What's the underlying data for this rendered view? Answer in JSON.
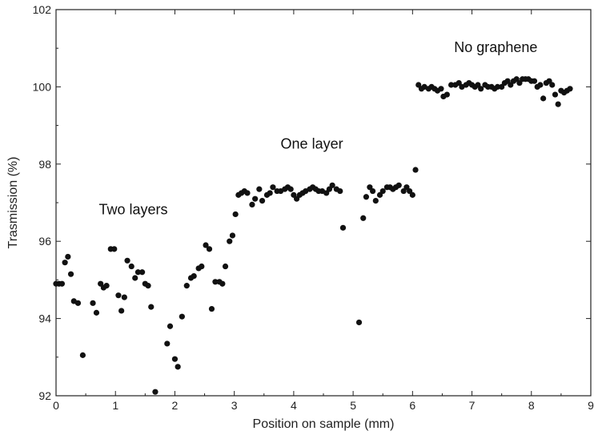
{
  "chart_data": {
    "type": "scatter",
    "xlabel": "Position on sample (mm)",
    "ylabel": "Trasmission (%)",
    "xlim": [
      0,
      9
    ],
    "ylim": [
      92,
      102
    ],
    "x_ticks": [
      "0",
      "1",
      "2",
      "3",
      "4",
      "5",
      "6",
      "7",
      "8",
      "9"
    ],
    "y_ticks": [
      "92",
      "94",
      "96",
      "98",
      "100",
      "102"
    ],
    "grid": false,
    "annotations": [
      {
        "text": "Two layers",
        "x": 0.72,
        "y": 96.7
      },
      {
        "text": "One layer",
        "x": 3.78,
        "y": 98.4
      },
      {
        "text": "No graphene",
        "x": 6.7,
        "y": 100.9
      }
    ],
    "marker_color": "#111111",
    "series": [
      {
        "points": [
          [
            0.0,
            94.9
          ],
          [
            0.05,
            94.9
          ],
          [
            0.1,
            94.9
          ],
          [
            0.15,
            95.45
          ],
          [
            0.2,
            95.6
          ],
          [
            0.25,
            95.15
          ],
          [
            0.3,
            94.45
          ],
          [
            0.37,
            94.4
          ],
          [
            0.45,
            93.05
          ],
          [
            0.62,
            94.4
          ],
          [
            0.68,
            94.15
          ],
          [
            0.75,
            94.9
          ],
          [
            0.8,
            94.8
          ],
          [
            0.85,
            94.85
          ],
          [
            0.92,
            95.8
          ],
          [
            0.98,
            95.8
          ],
          [
            1.05,
            94.6
          ],
          [
            1.1,
            94.2
          ],
          [
            1.15,
            94.55
          ],
          [
            1.2,
            95.5
          ],
          [
            1.27,
            95.35
          ],
          [
            1.33,
            95.05
          ],
          [
            1.38,
            95.2
          ],
          [
            1.45,
            95.2
          ],
          [
            1.5,
            94.9
          ],
          [
            1.55,
            94.85
          ],
          [
            1.6,
            94.3
          ],
          [
            1.67,
            92.1
          ],
          [
            1.87,
            93.35
          ],
          [
            1.92,
            93.8
          ],
          [
            2.0,
            92.95
          ],
          [
            2.05,
            92.75
          ],
          [
            2.12,
            94.05
          ],
          [
            2.2,
            94.85
          ],
          [
            2.27,
            95.05
          ],
          [
            2.32,
            95.1
          ],
          [
            2.4,
            95.3
          ],
          [
            2.45,
            95.35
          ],
          [
            2.52,
            95.9
          ],
          [
            2.58,
            95.8
          ],
          [
            2.62,
            94.25
          ],
          [
            2.68,
            94.95
          ],
          [
            2.75,
            94.95
          ],
          [
            2.8,
            94.9
          ],
          [
            2.85,
            95.35
          ],
          [
            2.92,
            96.0
          ],
          [
            2.97,
            96.15
          ],
          [
            3.02,
            96.7
          ],
          [
            3.07,
            97.2
          ],
          [
            3.12,
            97.25
          ],
          [
            3.17,
            97.3
          ],
          [
            3.22,
            97.25
          ],
          [
            3.3,
            96.95
          ],
          [
            3.35,
            97.1
          ],
          [
            3.42,
            97.35
          ],
          [
            3.47,
            97.05
          ],
          [
            3.55,
            97.2
          ],
          [
            3.6,
            97.25
          ],
          [
            3.65,
            97.4
          ],
          [
            3.72,
            97.3
          ],
          [
            3.78,
            97.3
          ],
          [
            3.85,
            97.35
          ],
          [
            3.9,
            97.4
          ],
          [
            3.95,
            97.35
          ],
          [
            4.0,
            97.2
          ],
          [
            4.05,
            97.1
          ],
          [
            4.1,
            97.2
          ],
          [
            4.15,
            97.25
          ],
          [
            4.2,
            97.3
          ],
          [
            4.27,
            97.35
          ],
          [
            4.32,
            97.4
          ],
          [
            4.37,
            97.35
          ],
          [
            4.42,
            97.3
          ],
          [
            4.48,
            97.3
          ],
          [
            4.55,
            97.25
          ],
          [
            4.6,
            97.35
          ],
          [
            4.65,
            97.45
          ],
          [
            4.72,
            97.35
          ],
          [
            4.78,
            97.3
          ],
          [
            4.83,
            96.35
          ],
          [
            5.1,
            93.9
          ],
          [
            5.17,
            96.6
          ],
          [
            5.22,
            97.15
          ],
          [
            5.28,
            97.4
          ],
          [
            5.33,
            97.3
          ],
          [
            5.38,
            97.05
          ],
          [
            5.45,
            97.2
          ],
          [
            5.5,
            97.3
          ],
          [
            5.57,
            97.4
          ],
          [
            5.62,
            97.4
          ],
          [
            5.67,
            97.35
          ],
          [
            5.72,
            97.4
          ],
          [
            5.77,
            97.45
          ],
          [
            5.85,
            97.3
          ],
          [
            5.9,
            97.4
          ],
          [
            5.95,
            97.3
          ],
          [
            6.0,
            97.2
          ],
          [
            6.05,
            97.85
          ],
          [
            6.1,
            100.05
          ],
          [
            6.15,
            99.95
          ],
          [
            6.2,
            100.0
          ],
          [
            6.27,
            99.95
          ],
          [
            6.32,
            100.0
          ],
          [
            6.37,
            99.95
          ],
          [
            6.42,
            99.9
          ],
          [
            6.48,
            99.95
          ],
          [
            6.52,
            99.75
          ],
          [
            6.58,
            99.8
          ],
          [
            6.65,
            100.05
          ],
          [
            6.72,
            100.05
          ],
          [
            6.78,
            100.1
          ],
          [
            6.83,
            100.0
          ],
          [
            6.9,
            100.05
          ],
          [
            6.95,
            100.1
          ],
          [
            7.0,
            100.05
          ],
          [
            7.05,
            100.0
          ],
          [
            7.1,
            100.05
          ],
          [
            7.15,
            99.95
          ],
          [
            7.22,
            100.05
          ],
          [
            7.27,
            100.0
          ],
          [
            7.33,
            100.0
          ],
          [
            7.38,
            99.95
          ],
          [
            7.43,
            100.0
          ],
          [
            7.5,
            100.0
          ],
          [
            7.55,
            100.1
          ],
          [
            7.6,
            100.15
          ],
          [
            7.65,
            100.05
          ],
          [
            7.7,
            100.15
          ],
          [
            7.75,
            100.2
          ],
          [
            7.8,
            100.1
          ],
          [
            7.85,
            100.2
          ],
          [
            7.9,
            100.2
          ],
          [
            7.95,
            100.2
          ],
          [
            8.0,
            100.15
          ],
          [
            8.05,
            100.15
          ],
          [
            8.1,
            100.0
          ],
          [
            8.15,
            100.05
          ],
          [
            8.2,
            99.7
          ],
          [
            8.25,
            100.1
          ],
          [
            8.3,
            100.15
          ],
          [
            8.35,
            100.05
          ],
          [
            8.4,
            99.8
          ],
          [
            8.45,
            99.55
          ],
          [
            8.5,
            99.9
          ],
          [
            8.55,
            99.85
          ],
          [
            8.6,
            99.9
          ],
          [
            8.65,
            99.95
          ]
        ]
      }
    ]
  }
}
